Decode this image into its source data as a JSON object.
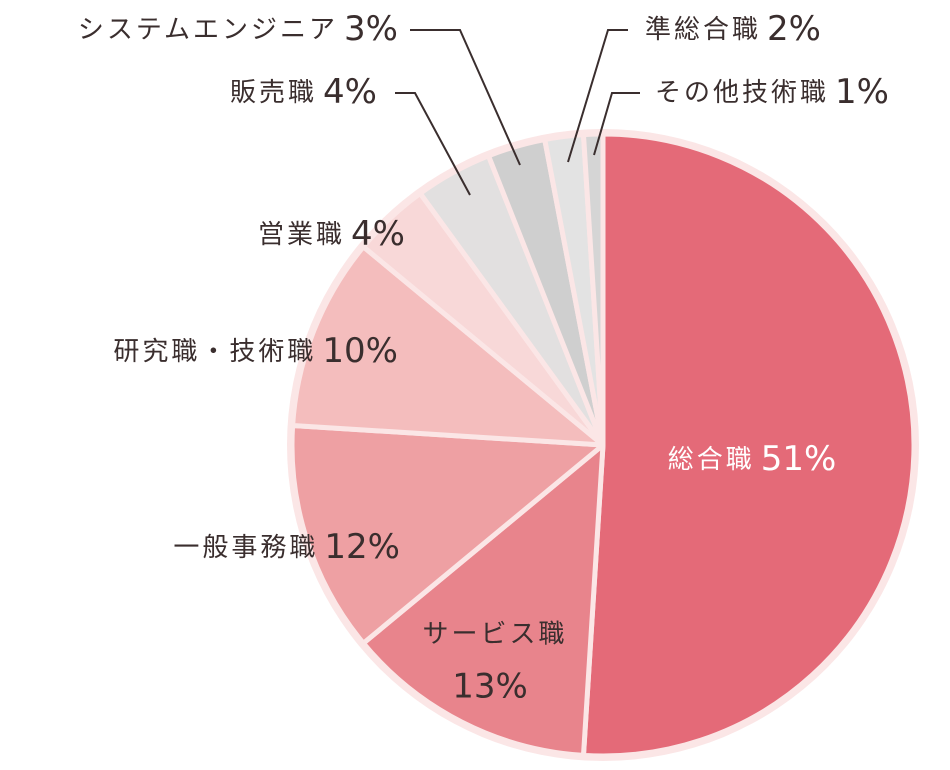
{
  "chart_data": {
    "type": "pie",
    "categories": [
      "総合職",
      "サービス職",
      "一般事務職",
      "研究職・技術職",
      "営業職",
      "販売職",
      "システムエンジニア",
      "準総合職",
      "その他技術職"
    ],
    "values": [
      51,
      13,
      12,
      10,
      4,
      4,
      3,
      2,
      1
    ],
    "value_labels": [
      "51%",
      "13%",
      "12%",
      "10%",
      "4%",
      "4%",
      "3%",
      "2%",
      "1%"
    ],
    "colors": [
      "#e46a78",
      "#e8848c",
      "#eea0a3",
      "#f4bdbd",
      "#f8d8d8",
      "#e2e0e0",
      "#cfcfcf",
      "#e3e3e3",
      "#d5d5d5"
    ]
  }
}
